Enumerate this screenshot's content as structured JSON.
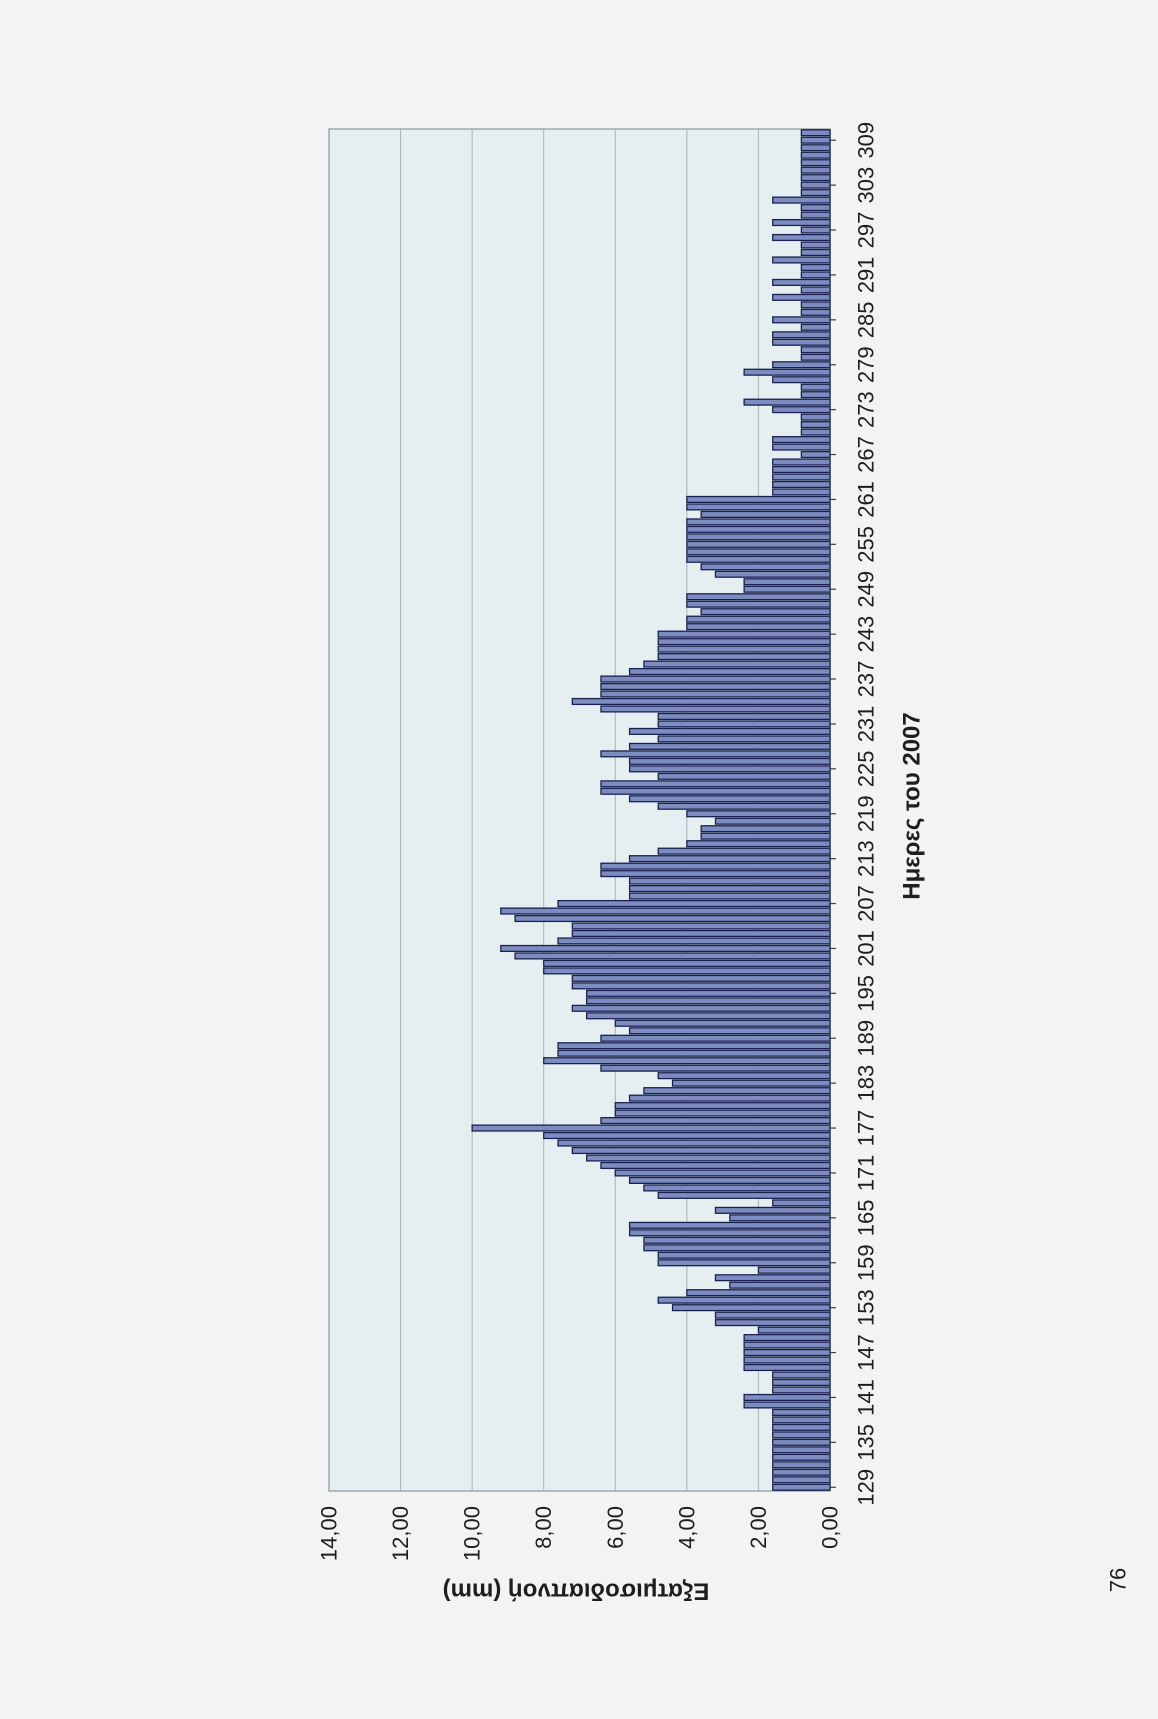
{
  "page": {
    "page_number": "76"
  },
  "chart_data": {
    "type": "bar",
    "xlabel": "Ημερες του 2007",
    "ylabel": "Εξατμισοδιαπνοή (mm)",
    "ylim": [
      0,
      14
    ],
    "grid": true,
    "legend": "none",
    "xticks": [
      "129",
      "135",
      "141",
      "147",
      "153",
      "159",
      "165",
      "171",
      "177",
      "183",
      "189",
      "195",
      "201",
      "207",
      "213",
      "219",
      "225",
      "231",
      "237",
      "243",
      "249",
      "255",
      "261",
      "267",
      "273",
      "279",
      "285",
      "291",
      "297",
      "303",
      "309"
    ],
    "yticks": [
      "0,00",
      "2,00",
      "4,00",
      "6,00",
      "8,00",
      "10,00",
      "12,00",
      "14,00"
    ],
    "x": [
      129,
      130,
      131,
      132,
      133,
      134,
      135,
      136,
      137,
      138,
      139,
      140,
      141,
      142,
      143,
      144,
      145,
      146,
      147,
      148,
      149,
      150,
      151,
      152,
      153,
      154,
      155,
      156,
      157,
      158,
      159,
      160,
      161,
      162,
      163,
      164,
      165,
      166,
      167,
      168,
      169,
      170,
      171,
      172,
      173,
      174,
      175,
      176,
      177,
      178,
      179,
      180,
      181,
      182,
      183,
      184,
      185,
      186,
      187,
      188,
      189,
      190,
      191,
      192,
      193,
      194,
      195,
      196,
      197,
      198,
      199,
      200,
      201,
      202,
      203,
      204,
      205,
      206,
      207,
      208,
      209,
      210,
      211,
      212,
      213,
      214,
      215,
      216,
      217,
      218,
      219,
      220,
      221,
      222,
      223,
      224,
      225,
      226,
      227,
      228,
      229,
      230,
      231,
      232,
      233,
      234,
      235,
      236,
      237,
      238,
      239,
      240,
      241,
      242,
      243,
      244,
      245,
      246,
      247,
      248,
      249,
      250,
      251,
      252,
      253,
      254,
      255,
      256,
      257,
      258,
      259,
      260,
      261,
      262,
      263,
      264,
      265,
      266,
      267,
      268,
      269,
      270,
      271,
      272,
      273,
      274,
      275,
      276,
      277,
      278,
      279,
      280,
      281,
      282,
      283,
      284,
      285,
      286,
      287,
      288,
      289,
      290,
      291,
      292,
      293,
      294,
      295,
      296,
      297,
      298,
      299,
      300,
      301,
      302,
      303,
      304,
      305,
      306,
      307,
      308,
      309,
      310
    ],
    "values": [
      1.6,
      1.6,
      1.6,
      1.6,
      1.6,
      1.6,
      1.6,
      1.6,
      1.6,
      1.6,
      1.6,
      2.4,
      2.4,
      1.6,
      1.6,
      1.6,
      2.4,
      2.4,
      2.4,
      2.4,
      2.4,
      2.0,
      3.2,
      3.2,
      4.4,
      4.8,
      4.0,
      2.8,
      3.2,
      2.0,
      4.8,
      4.8,
      5.2,
      5.2,
      5.6,
      5.6,
      2.8,
      3.2,
      1.6,
      4.8,
      5.2,
      5.6,
      6.0,
      6.4,
      6.8,
      7.2,
      7.6,
      8.0,
      10.0,
      6.4,
      6.0,
      6.0,
      5.6,
      5.2,
      4.4,
      4.8,
      6.4,
      8.0,
      7.6,
      7.6,
      6.4,
      5.6,
      6.0,
      6.8,
      7.2,
      6.8,
      6.8,
      7.2,
      7.2,
      8.0,
      8.0,
      8.8,
      9.2,
      7.6,
      7.2,
      7.2,
      8.8,
      9.2,
      7.6,
      5.6,
      5.6,
      5.6,
      6.4,
      6.4,
      5.6,
      4.8,
      4.0,
      3.6,
      3.6,
      3.2,
      4.0,
      4.8,
      5.6,
      6.4,
      6.4,
      4.8,
      5.6,
      5.6,
      6.4,
      5.6,
      4.8,
      5.6,
      4.8,
      4.8,
      6.4,
      7.2,
      6.4,
      6.4,
      6.4,
      5.6,
      5.2,
      4.8,
      4.8,
      4.8,
      4.8,
      4.0,
      4.0,
      3.6,
      4.0,
      4.0,
      2.4,
      2.4,
      3.2,
      3.6,
      4.0,
      4.0,
      4.0,
      4.0,
      4.0,
      4.0,
      3.6,
      4.0,
      4.0,
      1.6,
      1.6,
      1.6,
      1.6,
      1.6,
      0.8,
      1.6,
      1.6,
      0.8,
      0.8,
      0.8,
      1.6,
      2.4,
      0.8,
      0.8,
      1.6,
      2.4,
      1.6,
      0.8,
      0.8,
      1.6,
      1.6,
      0.8,
      1.6,
      0.8,
      0.8,
      1.6,
      0.8,
      1.6,
      0.8,
      0.8,
      1.6,
      0.8,
      0.8,
      1.6,
      0.8,
      1.6,
      0.8,
      0.8,
      1.6,
      0.8,
      0.8,
      0.8,
      0.8,
      0.8,
      0.8,
      0.8,
      0.8,
      0.8
    ],
    "colors": {
      "bar_fill": "#7d8cc0",
      "bar_edge": "#1a2150",
      "plot_background": "#e5eef0",
      "plot_border": "#8c979b",
      "gridline": "#a9b2b5",
      "axis": "#3a3f44",
      "text": "#1e1e1e"
    }
  }
}
